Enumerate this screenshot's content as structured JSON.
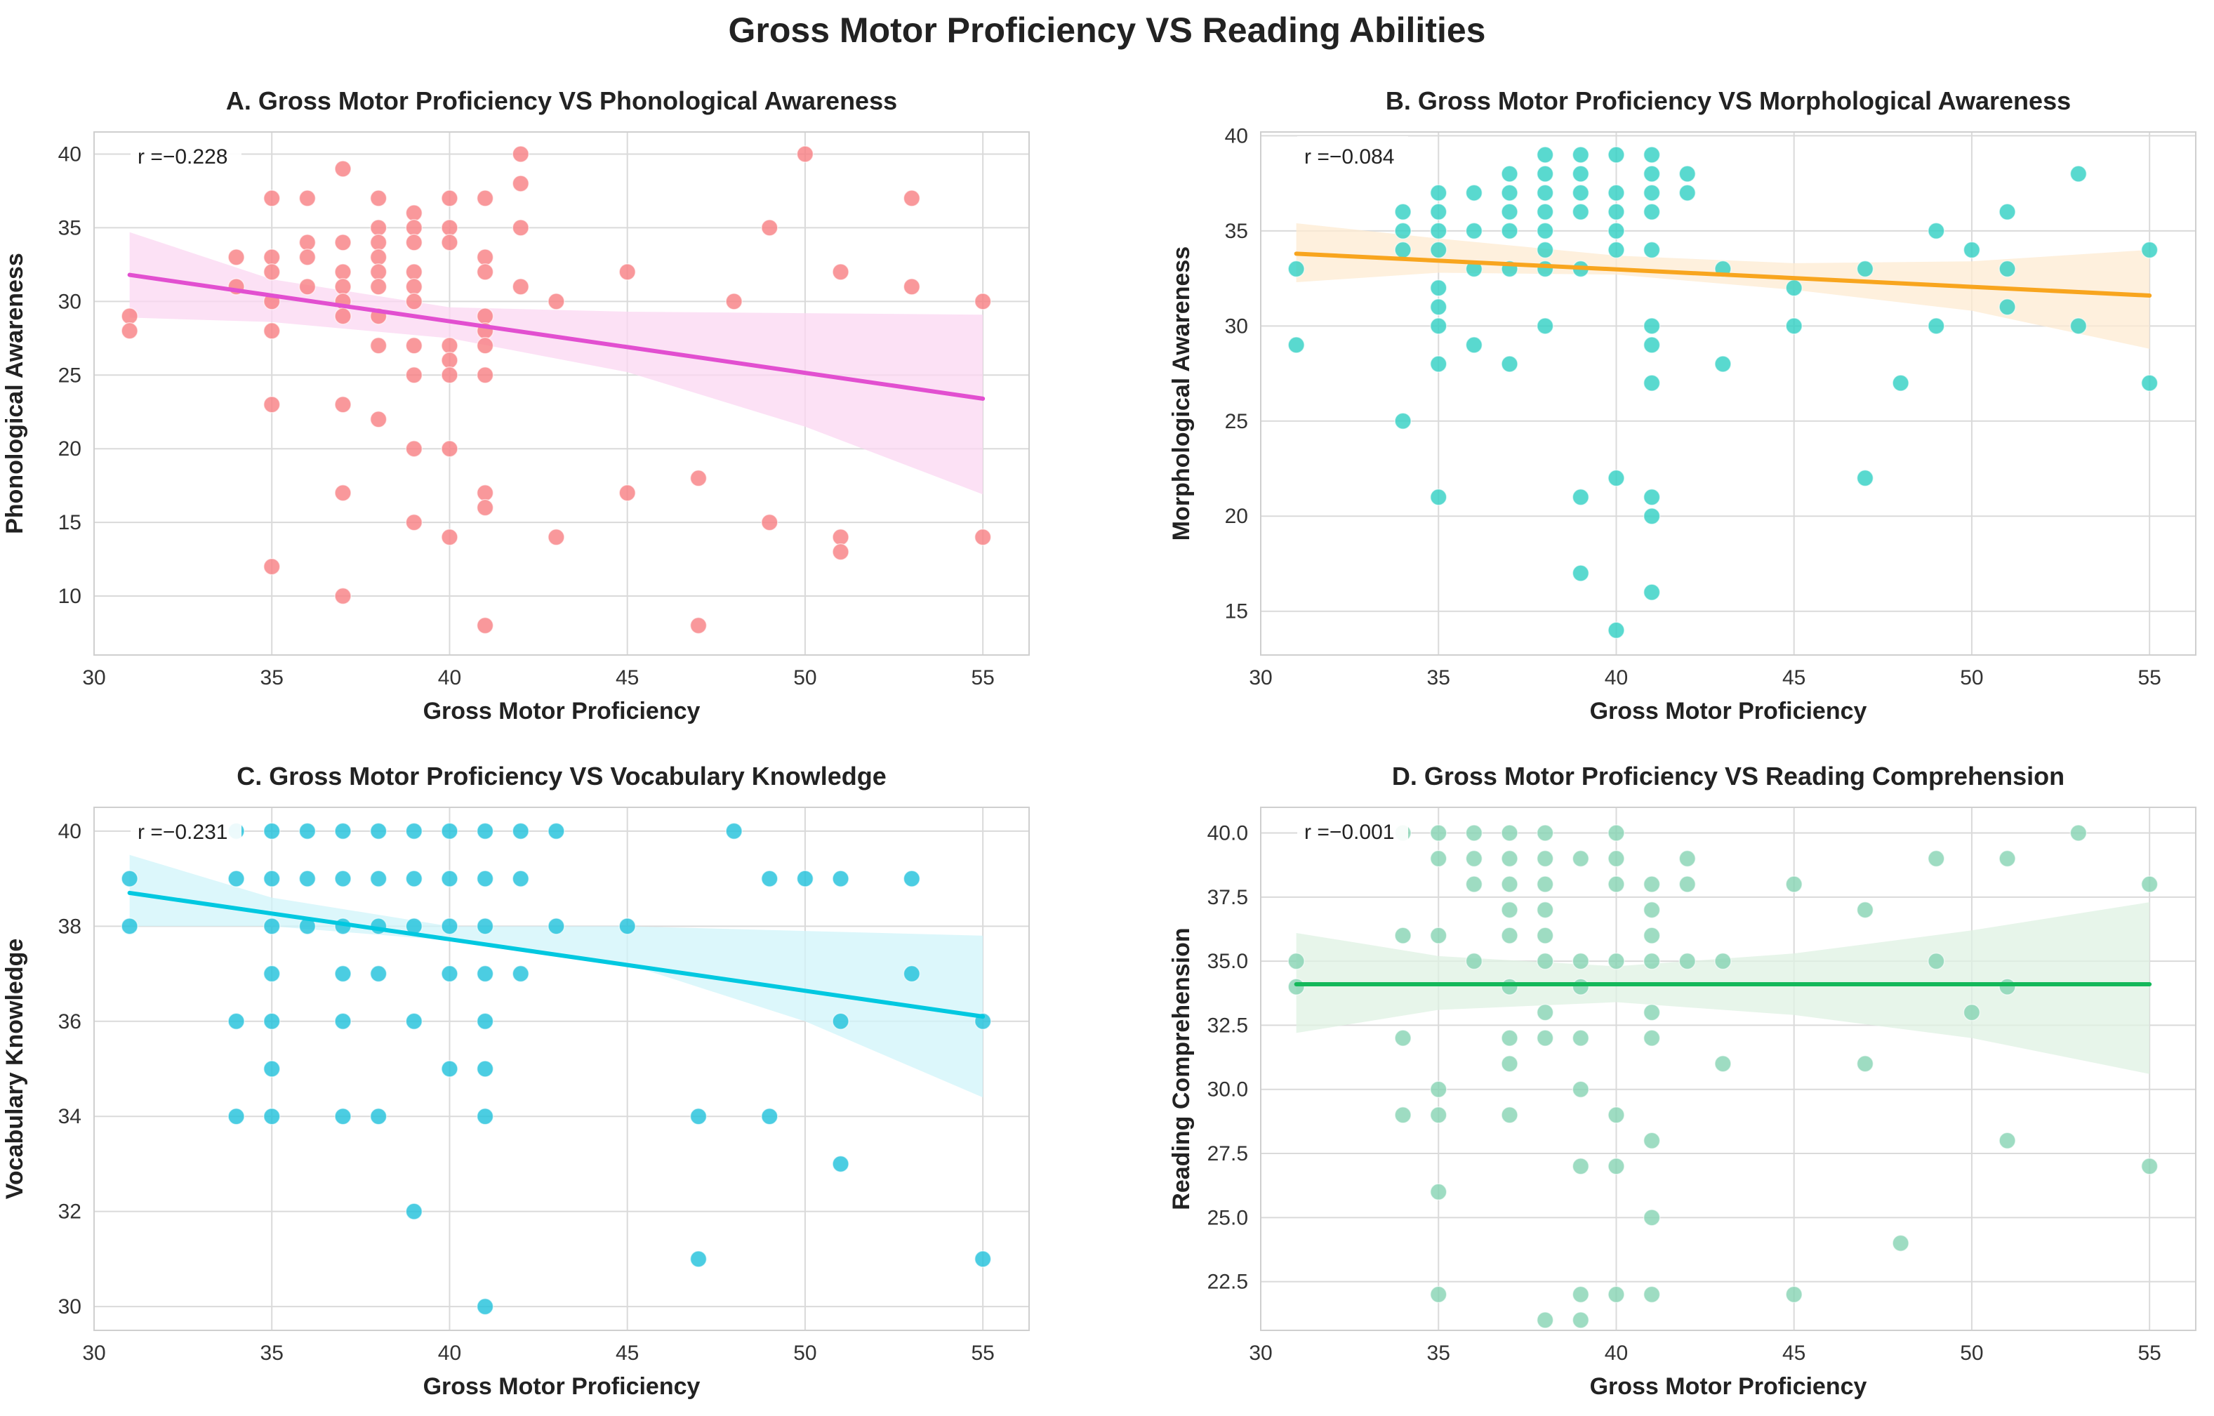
{
  "figure": {
    "title": "Gross Motor Proficiency VS Reading Abilities"
  },
  "chart_data": [
    {
      "type": "scatter",
      "title": "A. Gross Motor Proficiency VS Phonological Awareness",
      "xlabel": "Gross Motor Proficiency",
      "ylabel": "Phonological Awareness",
      "r_label": "r =−0.228",
      "xlim": [
        30,
        56.3
      ],
      "ylim": [
        6,
        41.5
      ],
      "xticks": [
        30,
        35,
        40,
        45,
        50,
        55
      ],
      "yticks": [
        10,
        15,
        20,
        25,
        30,
        35,
        40
      ],
      "ytick_labels": [
        "10",
        "15",
        "20",
        "25",
        "30",
        "35",
        "40"
      ],
      "point_color": "#f87e82",
      "line_color": "#e24fd0",
      "band_color": "#fbd7f1",
      "regression": {
        "x": [
          31,
          55
        ],
        "y": [
          31.8,
          23.4
        ]
      },
      "band": {
        "x": [
          31,
          35,
          40,
          45,
          50,
          55
        ],
        "lower": [
          28.9,
          28.6,
          27.5,
          25.2,
          21.5,
          16.9
        ],
        "upper": [
          34.7,
          31.5,
          29.6,
          29.3,
          29.2,
          29.1
        ]
      },
      "points": [
        [
          31,
          29
        ],
        [
          31,
          28
        ],
        [
          34,
          33
        ],
        [
          34,
          31
        ],
        [
          35,
          37
        ],
        [
          35,
          33
        ],
        [
          35,
          32
        ],
        [
          35,
          30
        ],
        [
          35,
          28
        ],
        [
          35,
          23
        ],
        [
          35,
          12
        ],
        [
          36,
          37
        ],
        [
          36,
          34
        ],
        [
          36,
          33
        ],
        [
          36,
          31
        ],
        [
          37,
          39
        ],
        [
          37,
          34
        ],
        [
          37,
          32
        ],
        [
          37,
          31
        ],
        [
          37,
          30
        ],
        [
          37,
          29
        ],
        [
          37,
          23
        ],
        [
          37,
          17
        ],
        [
          37,
          10
        ],
        [
          38,
          37
        ],
        [
          38,
          35
        ],
        [
          38,
          34
        ],
        [
          38,
          33
        ],
        [
          38,
          32
        ],
        [
          38,
          31
        ],
        [
          38,
          29
        ],
        [
          38,
          27
        ],
        [
          38,
          22
        ],
        [
          39,
          36
        ],
        [
          39,
          35
        ],
        [
          39,
          34
        ],
        [
          39,
          32
        ],
        [
          39,
          31
        ],
        [
          39,
          30
        ],
        [
          39,
          27
        ],
        [
          39,
          25
        ],
        [
          39,
          20
        ],
        [
          39,
          15
        ],
        [
          40,
          37
        ],
        [
          40,
          35
        ],
        [
          40,
          34
        ],
        [
          40,
          27
        ],
        [
          40,
          26
        ],
        [
          40,
          25
        ],
        [
          40,
          20
        ],
        [
          40,
          14
        ],
        [
          41,
          37
        ],
        [
          41,
          33
        ],
        [
          41,
          32
        ],
        [
          41,
          29
        ],
        [
          41,
          28
        ],
        [
          41,
          27
        ],
        [
          41,
          25
        ],
        [
          41,
          17
        ],
        [
          41,
          16
        ],
        [
          41,
          8
        ],
        [
          42,
          40
        ],
        [
          42,
          38
        ],
        [
          42,
          35
        ],
        [
          42,
          31
        ],
        [
          43,
          30
        ],
        [
          43,
          14
        ],
        [
          45,
          32
        ],
        [
          45,
          17
        ],
        [
          47,
          18
        ],
        [
          47,
          8
        ],
        [
          48,
          30
        ],
        [
          49,
          35
        ],
        [
          49,
          15
        ],
        [
          50,
          40
        ],
        [
          51,
          32
        ],
        [
          51,
          14
        ],
        [
          51,
          13
        ],
        [
          53,
          37
        ],
        [
          53,
          31
        ],
        [
          55,
          30
        ],
        [
          55,
          14
        ]
      ]
    },
    {
      "type": "scatter",
      "title": "B. Gross Motor Proficiency VS Morphological Awareness",
      "xlabel": "Gross Motor Proficiency",
      "ylabel": "Morphological Awareness",
      "r_label": "r =−0.084",
      "xlim": [
        30,
        56.3
      ],
      "ylim": [
        12.7,
        40.2
      ],
      "xticks": [
        30,
        35,
        40,
        45,
        50,
        55
      ],
      "yticks": [
        15,
        20,
        25,
        30,
        35,
        40
      ],
      "ytick_labels": [
        "15",
        "20",
        "25",
        "30",
        "35",
        "40"
      ],
      "point_color": "#2fcfc3",
      "line_color": "#f8a51e",
      "band_color": "#fdebd2",
      "regression": {
        "x": [
          31,
          55
        ],
        "y": [
          33.8,
          31.6
        ]
      },
      "band": {
        "x": [
          31,
          35,
          40,
          45,
          50,
          55
        ],
        "lower": [
          32.3,
          32.8,
          32.7,
          31.9,
          30.8,
          28.8
        ],
        "upper": [
          35.4,
          34.6,
          33.7,
          33.3,
          33.4,
          34.0
        ]
      },
      "points": [
        [
          31,
          33
        ],
        [
          31,
          29
        ],
        [
          34,
          36
        ],
        [
          34,
          35
        ],
        [
          34,
          34
        ],
        [
          34,
          25
        ],
        [
          35,
          37
        ],
        [
          35,
          36
        ],
        [
          35,
          35
        ],
        [
          35,
          34
        ],
        [
          35,
          32
        ],
        [
          35,
          31
        ],
        [
          35,
          30
        ],
        [
          35,
          28
        ],
        [
          35,
          21
        ],
        [
          36,
          37
        ],
        [
          36,
          35
        ],
        [
          36,
          33
        ],
        [
          36,
          29
        ],
        [
          37,
          38
        ],
        [
          37,
          37
        ],
        [
          37,
          36
        ],
        [
          37,
          35
        ],
        [
          37,
          33
        ],
        [
          37,
          28
        ],
        [
          38,
          39
        ],
        [
          38,
          38
        ],
        [
          38,
          37
        ],
        [
          38,
          36
        ],
        [
          38,
          35
        ],
        [
          38,
          34
        ],
        [
          38,
          33
        ],
        [
          38,
          30
        ],
        [
          39,
          39
        ],
        [
          39,
          38
        ],
        [
          39,
          37
        ],
        [
          39,
          36
        ],
        [
          39,
          33
        ],
        [
          39,
          21
        ],
        [
          39,
          17
        ],
        [
          40,
          39
        ],
        [
          40,
          37
        ],
        [
          40,
          36
        ],
        [
          40,
          35
        ],
        [
          40,
          34
        ],
        [
          40,
          22
        ],
        [
          40,
          14
        ],
        [
          41,
          39
        ],
        [
          41,
          38
        ],
        [
          41,
          37
        ],
        [
          41,
          36
        ],
        [
          41,
          34
        ],
        [
          41,
          30
        ],
        [
          41,
          29
        ],
        [
          41,
          27
        ],
        [
          41,
          21
        ],
        [
          41,
          20
        ],
        [
          41,
          16
        ],
        [
          42,
          38
        ],
        [
          42,
          37
        ],
        [
          43,
          33
        ],
        [
          43,
          28
        ],
        [
          45,
          32
        ],
        [
          45,
          30
        ],
        [
          47,
          33
        ],
        [
          47,
          22
        ],
        [
          48,
          27
        ],
        [
          49,
          35
        ],
        [
          49,
          30
        ],
        [
          50,
          34
        ],
        [
          51,
          36
        ],
        [
          51,
          33
        ],
        [
          51,
          31
        ],
        [
          53,
          38
        ],
        [
          53,
          30
        ],
        [
          55,
          34
        ],
        [
          55,
          27
        ]
      ]
    },
    {
      "type": "scatter",
      "title": "C. Gross Motor Proficiency VS Vocabulary Knowledge",
      "xlabel": "Gross Motor Proficiency",
      "ylabel": "Vocabulary Knowledge",
      "r_label": "r =−0.231",
      "xlim": [
        30,
        56.3
      ],
      "ylim": [
        29.5,
        40.5
      ],
      "xticks": [
        30,
        35,
        40,
        45,
        50,
        55
      ],
      "yticks": [
        30,
        32,
        34,
        36,
        38,
        40
      ],
      "ytick_labels": [
        "30",
        "32",
        "34",
        "36",
        "38",
        "40"
      ],
      "point_color": "#1ec0db",
      "line_color": "#00c8e0",
      "band_color": "#d0f4fa",
      "regression": {
        "x": [
          31,
          55
        ],
        "y": [
          38.7,
          36.1
        ]
      },
      "band": {
        "x": [
          31,
          35,
          40,
          45,
          50,
          55
        ],
        "lower": [
          38.0,
          38.0,
          37.7,
          37.2,
          36.0,
          34.4
        ],
        "upper": [
          39.5,
          38.6,
          38.0,
          38.0,
          37.9,
          37.8
        ]
      },
      "points": [
        [
          31,
          39
        ],
        [
          31,
          38
        ],
        [
          34,
          40
        ],
        [
          34,
          39
        ],
        [
          34,
          36
        ],
        [
          34,
          34
        ],
        [
          35,
          40
        ],
        [
          35,
          39
        ],
        [
          35,
          38
        ],
        [
          35,
          37
        ],
        [
          35,
          36
        ],
        [
          35,
          35
        ],
        [
          35,
          34
        ],
        [
          36,
          40
        ],
        [
          36,
          39
        ],
        [
          36,
          38
        ],
        [
          37,
          40
        ],
        [
          37,
          39
        ],
        [
          37,
          38
        ],
        [
          37,
          37
        ],
        [
          37,
          36
        ],
        [
          37,
          34
        ],
        [
          38,
          40
        ],
        [
          38,
          39
        ],
        [
          38,
          38
        ],
        [
          38,
          37
        ],
        [
          38,
          34
        ],
        [
          39,
          40
        ],
        [
          39,
          39
        ],
        [
          39,
          38
        ],
        [
          39,
          36
        ],
        [
          39,
          32
        ],
        [
          40,
          40
        ],
        [
          40,
          39
        ],
        [
          40,
          38
        ],
        [
          40,
          37
        ],
        [
          40,
          35
        ],
        [
          41,
          40
        ],
        [
          41,
          39
        ],
        [
          41,
          38
        ],
        [
          41,
          37
        ],
        [
          41,
          36
        ],
        [
          41,
          35
        ],
        [
          41,
          34
        ],
        [
          41,
          30
        ],
        [
          42,
          40
        ],
        [
          42,
          39
        ],
        [
          42,
          37
        ],
        [
          43,
          40
        ],
        [
          43,
          38
        ],
        [
          45,
          38
        ],
        [
          47,
          34
        ],
        [
          47,
          31
        ],
        [
          48,
          40
        ],
        [
          49,
          39
        ],
        [
          49,
          34
        ],
        [
          50,
          39
        ],
        [
          51,
          39
        ],
        [
          51,
          36
        ],
        [
          51,
          33
        ],
        [
          53,
          39
        ],
        [
          53,
          37
        ],
        [
          55,
          36
        ],
        [
          55,
          31
        ]
      ]
    },
    {
      "type": "scatter",
      "title": "D. Gross Motor Proficiency VS Reading Comprehension",
      "xlabel": "Gross Motor Proficiency",
      "ylabel": "Reading Comprehension",
      "r_label": "r =−0.001",
      "xlim": [
        30,
        56.3
      ],
      "ylim": [
        20.6,
        41.0
      ],
      "xticks": [
        30,
        35,
        40,
        45,
        50,
        55
      ],
      "yticks": [
        22.5,
        25,
        27.5,
        30,
        32.5,
        35,
        37.5,
        40
      ],
      "ytick_labels": [
        "22.5",
        "25.0",
        "27.5",
        "30.0",
        "32.5",
        "35.0",
        "37.5",
        "40.0"
      ],
      "point_color": "#86d3b3",
      "line_color": "#14b85a",
      "band_color": "#dff1e3",
      "regression": {
        "x": [
          31,
          55
        ],
        "y": [
          34.1,
          34.1
        ]
      },
      "band": {
        "x": [
          31,
          35,
          40,
          45,
          50,
          55
        ],
        "lower": [
          32.2,
          33.1,
          33.4,
          32.9,
          32.0,
          30.6
        ],
        "upper": [
          36.1,
          35.2,
          34.8,
          35.3,
          36.2,
          37.3
        ]
      },
      "points": [
        [
          31,
          35
        ],
        [
          31,
          34
        ],
        [
          34,
          40
        ],
        [
          34,
          36
        ],
        [
          34,
          32
        ],
        [
          34,
          29
        ],
        [
          35,
          40
        ],
        [
          35,
          39
        ],
        [
          35,
          36
        ],
        [
          35,
          30
        ],
        [
          35,
          29
        ],
        [
          35,
          26
        ],
        [
          35,
          22
        ],
        [
          36,
          40
        ],
        [
          36,
          39
        ],
        [
          36,
          38
        ],
        [
          36,
          35
        ],
        [
          37,
          40
        ],
        [
          37,
          39
        ],
        [
          37,
          38
        ],
        [
          37,
          37
        ],
        [
          37,
          36
        ],
        [
          37,
          34
        ],
        [
          37,
          32
        ],
        [
          37,
          31
        ],
        [
          37,
          29
        ],
        [
          38,
          40
        ],
        [
          38,
          39
        ],
        [
          38,
          38
        ],
        [
          38,
          37
        ],
        [
          38,
          36
        ],
        [
          38,
          35
        ],
        [
          38,
          33
        ],
        [
          38,
          32
        ],
        [
          38,
          21
        ],
        [
          39,
          39
        ],
        [
          39,
          35
        ],
        [
          39,
          34
        ],
        [
          39,
          32
        ],
        [
          39,
          30
        ],
        [
          39,
          27
        ],
        [
          39,
          22
        ],
        [
          39,
          21
        ],
        [
          40,
          40
        ],
        [
          40,
          39
        ],
        [
          40,
          38
        ],
        [
          40,
          35
        ],
        [
          40,
          29
        ],
        [
          40,
          27
        ],
        [
          40,
          22
        ],
        [
          41,
          38
        ],
        [
          41,
          37
        ],
        [
          41,
          36
        ],
        [
          41,
          35
        ],
        [
          41,
          33
        ],
        [
          41,
          32
        ],
        [
          41,
          28
        ],
        [
          41,
          25
        ],
        [
          41,
          22
        ],
        [
          42,
          39
        ],
        [
          42,
          38
        ],
        [
          42,
          35
        ],
        [
          43,
          35
        ],
        [
          43,
          31
        ],
        [
          45,
          38
        ],
        [
          45,
          22
        ],
        [
          47,
          37
        ],
        [
          47,
          31
        ],
        [
          48,
          24
        ],
        [
          49,
          39
        ],
        [
          49,
          35
        ],
        [
          50,
          33
        ],
        [
          51,
          39
        ],
        [
          51,
          34
        ],
        [
          51,
          28
        ],
        [
          53,
          40
        ],
        [
          55,
          38
        ],
        [
          55,
          27
        ]
      ]
    }
  ]
}
